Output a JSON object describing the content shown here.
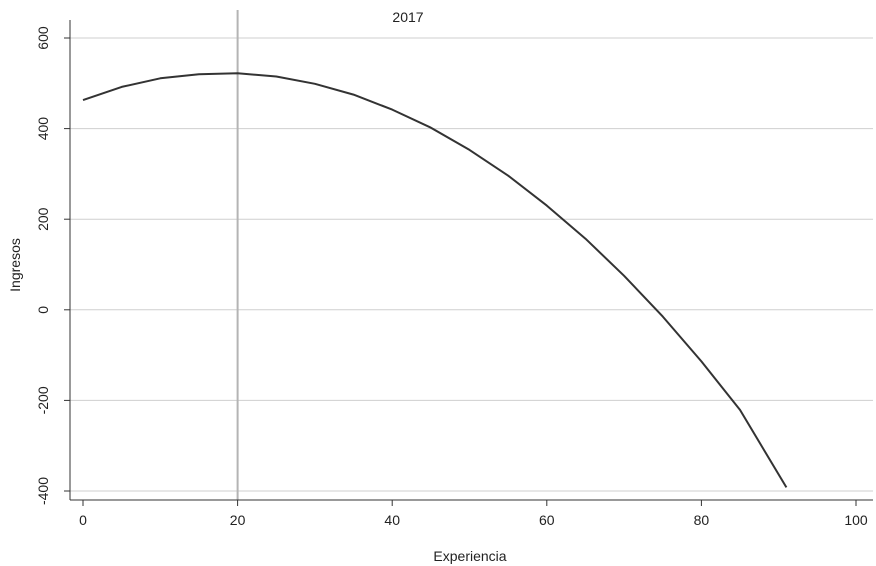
{
  "chart_data": {
    "type": "line",
    "title": "2017",
    "xlabel": "Experiencia",
    "ylabel": "Ingresos",
    "xlim": [
      0,
      100
    ],
    "ylim": [
      -400,
      600
    ],
    "xticks": [
      0,
      20,
      40,
      60,
      80,
      100
    ],
    "yticks": [
      -400,
      -200,
      0,
      200,
      400,
      600
    ],
    "grid": "horizontal",
    "reference_line_x": 20,
    "series": [
      {
        "x": [
          0,
          5,
          10,
          15,
          20,
          25,
          30,
          35,
          40,
          45,
          50,
          55,
          60,
          65,
          70,
          75,
          80,
          85,
          91
        ],
        "y": [
          463,
          492,
          511,
          520,
          522,
          515,
          499,
          475,
          442,
          402,
          353,
          296,
          230,
          157,
          75,
          -15,
          -114,
          -221,
          -392
        ]
      }
    ],
    "colors": {
      "line": "#333333",
      "grid": "#cfcfcf",
      "reference_line": "#b4b4b4",
      "axis": "#333333"
    }
  }
}
